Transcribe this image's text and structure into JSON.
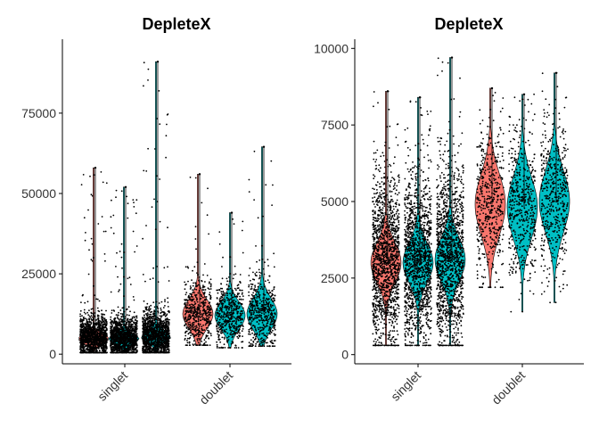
{
  "colors": {
    "pink": "#F8766D",
    "teal": "#00BFC4",
    "points": "#000000"
  },
  "chart_data": [
    {
      "type": "violin",
      "title": "DepleteX",
      "categories": [
        "singlet",
        "doublet"
      ],
      "ylim": [
        -3000,
        98000
      ],
      "yticks": [
        0,
        25000,
        50000,
        75000
      ],
      "ytick_labels": [
        "0",
        "25000",
        "50000",
        "75000"
      ],
      "grid": false,
      "legend": "none",
      "series": [
        {
          "category": "singlet",
          "fill": "pink",
          "ymin": 500,
          "ymax": 58000,
          "mode": 4800,
          "spread": 1600
        },
        {
          "category": "singlet",
          "fill": "teal",
          "ymin": 500,
          "ymax": 52000,
          "mode": 4800,
          "spread": 1600
        },
        {
          "category": "singlet",
          "fill": "teal",
          "ymin": 500,
          "ymax": 91000,
          "mode": 5500,
          "spread": 1800
        },
        {
          "category": "doublet",
          "fill": "pink",
          "ymin": 2800,
          "ymax": 56000,
          "mode": 12500,
          "spread": 4500
        },
        {
          "category": "doublet",
          "fill": "teal",
          "ymin": 2000,
          "ymax": 44000,
          "mode": 12000,
          "spread": 4200
        },
        {
          "category": "doublet",
          "fill": "teal",
          "ymin": 2500,
          "ymax": 64500,
          "mode": 12500,
          "spread": 4800
        }
      ]
    },
    {
      "type": "violin",
      "title": "DepleteX",
      "categories": [
        "singlet",
        "doublet"
      ],
      "ylim": [
        -300,
        10300
      ],
      "yticks": [
        0,
        2500,
        5000,
        7500,
        10000
      ],
      "ytick_labels": [
        "0",
        "2500",
        "5000",
        "7500",
        "10000"
      ],
      "grid": false,
      "legend": "none",
      "series": [
        {
          "category": "singlet",
          "fill": "pink",
          "ymin": 300,
          "ymax": 8600,
          "mode": 3000,
          "spread": 650
        },
        {
          "category": "singlet",
          "fill": "teal",
          "ymin": 300,
          "ymax": 8400,
          "mode": 3000,
          "spread": 650
        },
        {
          "category": "singlet",
          "fill": "teal",
          "ymin": 300,
          "ymax": 9700,
          "mode": 3100,
          "spread": 700
        },
        {
          "category": "doublet",
          "fill": "pink",
          "ymin": 2200,
          "ymax": 8700,
          "mode": 4900,
          "spread": 1000
        },
        {
          "category": "doublet",
          "fill": "teal",
          "ymin": 1400,
          "ymax": 8500,
          "mode": 4800,
          "spread": 1000
        },
        {
          "category": "doublet",
          "fill": "teal",
          "ymin": 1700,
          "ymax": 9200,
          "mode": 5000,
          "spread": 1000
        }
      ]
    }
  ]
}
